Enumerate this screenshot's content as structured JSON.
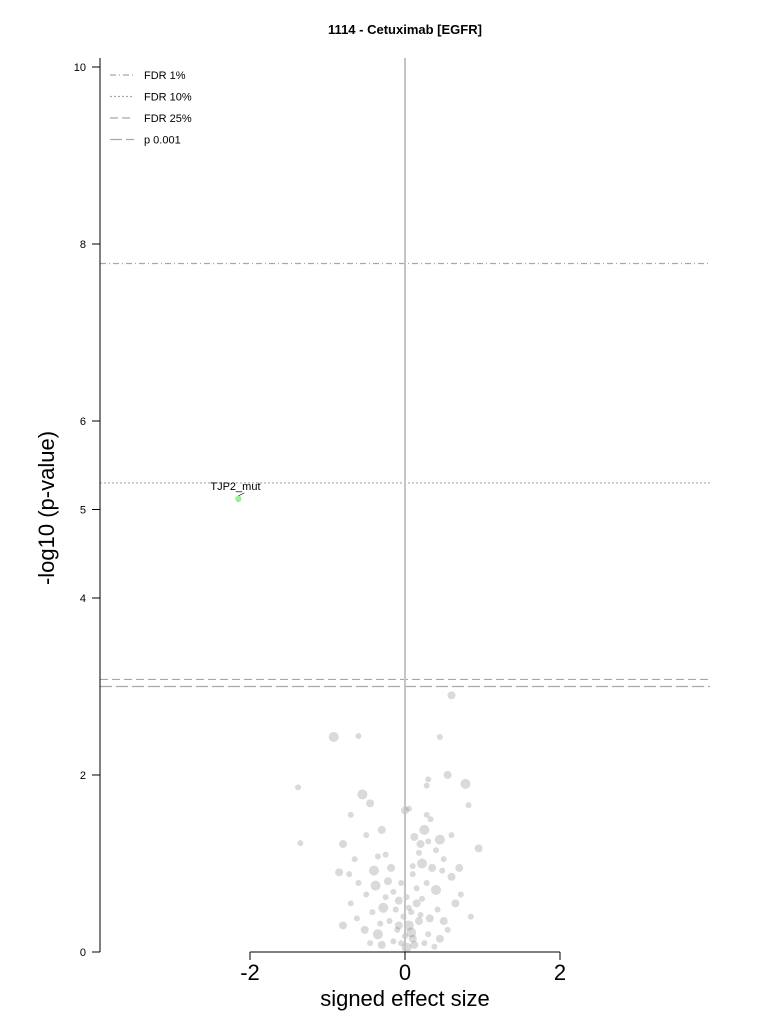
{
  "chart_data": {
    "type": "scatter",
    "title": "1114 - Cetuximab [EGFR]",
    "xlabel": "signed effect size",
    "ylabel": "-log10 (p-value)",
    "xlim": [
      -4,
      4
    ],
    "ylim": [
      0,
      10
    ],
    "x_ticks": [
      -2,
      0,
      2
    ],
    "x_tick_labels": [
      "-2",
      "0",
      "2"
    ],
    "y_ticks": [
      0,
      2,
      4,
      5,
      6,
      8,
      10
    ],
    "y_tick_labels": [
      "0",
      "2",
      "4",
      "5",
      "6",
      "8",
      "10"
    ],
    "grid": false,
    "legend_position": "top-left",
    "thresholds": [
      {
        "label": "FDR 1%",
        "y": 7.78,
        "style": "dashdot"
      },
      {
        "label": "FDR 10%",
        "y": 5.3,
        "style": "dotted"
      },
      {
        "label": "FDR 25%",
        "y": 3.08,
        "style": "dashed"
      },
      {
        "label": "p 0.001",
        "y": 3.0,
        "style": "longdash"
      }
    ],
    "highlight_points": [
      {
        "label": "TJP2_mut",
        "x": -2.15,
        "y": 5.12,
        "color": "#90ee90"
      }
    ],
    "background_points": [
      [
        -0.92,
        2.43
      ],
      [
        -0.6,
        2.44
      ],
      [
        0.45,
        2.43
      ],
      [
        0.6,
        2.9
      ],
      [
        -1.38,
        1.86
      ],
      [
        -1.35,
        1.23
      ],
      [
        0.95,
        1.17
      ],
      [
        0.78,
        1.9
      ],
      [
        0.82,
        1.66
      ],
      [
        0.55,
        2.0
      ],
      [
        0.3,
        1.95
      ],
      [
        0.28,
        1.88
      ],
      [
        0.0,
        1.6
      ],
      [
        0.05,
        1.62
      ],
      [
        -0.55,
        1.78
      ],
      [
        -0.45,
        1.68
      ],
      [
        -0.7,
        1.55
      ],
      [
        -0.5,
        1.32
      ],
      [
        -0.3,
        1.38
      ],
      [
        0.28,
        1.55
      ],
      [
        0.33,
        1.5
      ],
      [
        0.25,
        1.38
      ],
      [
        -0.25,
        1.1
      ],
      [
        -0.35,
        1.08
      ],
      [
        -0.8,
        1.22
      ],
      [
        -0.65,
        1.05
      ],
      [
        0.1,
        0.97
      ],
      [
        0.2,
        1.22
      ],
      [
        0.45,
        1.27
      ],
      [
        0.5,
        1.05
      ],
      [
        0.6,
        0.85
      ],
      [
        0.72,
        0.65
      ],
      [
        -0.72,
        0.88
      ],
      [
        -0.85,
        0.9
      ],
      [
        -0.6,
        0.78
      ],
      [
        -0.4,
        0.92
      ],
      [
        0.35,
        0.95
      ],
      [
        0.15,
        0.72
      ],
      [
        -0.15,
        0.68
      ],
      [
        -0.08,
        0.58
      ],
      [
        0.05,
        0.5
      ],
      [
        0.22,
        0.6
      ],
      [
        -0.28,
        0.5
      ],
      [
        -0.42,
        0.45
      ],
      [
        0.42,
        0.48
      ],
      [
        0.5,
        0.35
      ],
      [
        0.55,
        0.25
      ],
      [
        -0.62,
        0.38
      ],
      [
        -0.52,
        0.25
      ],
      [
        -0.35,
        0.2
      ],
      [
        0.3,
        0.2
      ],
      [
        0.18,
        0.35
      ],
      [
        -0.2,
        0.35
      ],
      [
        -0.1,
        0.25
      ],
      [
        0.1,
        0.15
      ],
      [
        -0.05,
        0.1
      ],
      [
        0.02,
        0.05
      ],
      [
        0.12,
        0.08
      ],
      [
        -0.15,
        0.12
      ],
      [
        0.25,
        0.1
      ],
      [
        -0.3,
        0.08
      ],
      [
        0.38,
        0.06
      ],
      [
        -0.45,
        0.1
      ],
      [
        0.05,
        0.3
      ],
      [
        -0.02,
        0.4
      ],
      [
        0.08,
        0.45
      ],
      [
        0.15,
        0.55
      ],
      [
        -0.12,
        0.48
      ],
      [
        0.28,
        0.78
      ],
      [
        -0.22,
        0.8
      ],
      [
        0.4,
        0.7
      ],
      [
        -0.5,
        0.65
      ],
      [
        0.65,
        0.55
      ],
      [
        -0.7,
        0.55
      ],
      [
        0.85,
        0.4
      ],
      [
        -0.8,
        0.3
      ],
      [
        0.0,
        0.18
      ],
      [
        0.08,
        0.22
      ],
      [
        -0.08,
        0.3
      ],
      [
        0.2,
        0.42
      ],
      [
        -0.25,
        0.62
      ],
      [
        0.32,
        0.38
      ],
      [
        0.1,
        0.88
      ],
      [
        -0.05,
        0.78
      ],
      [
        0.22,
        1.0
      ],
      [
        0.18,
        1.12
      ],
      [
        0.3,
        1.25
      ],
      [
        0.12,
        1.3
      ],
      [
        0.4,
        1.15
      ],
      [
        0.48,
        0.92
      ],
      [
        -0.18,
        0.95
      ],
      [
        -0.38,
        0.75
      ],
      [
        0.6,
        1.32
      ],
      [
        0.7,
        0.95
      ],
      [
        0.02,
        0.62
      ],
      [
        -0.32,
        0.32
      ],
      [
        0.45,
        0.15
      ]
    ]
  }
}
